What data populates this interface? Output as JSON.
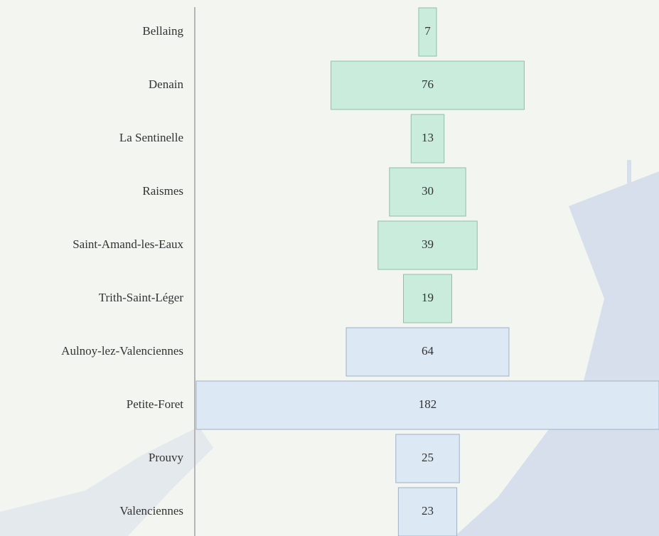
{
  "chart_data": {
    "type": "bar",
    "categories": [
      "Bellaing",
      "Denain",
      "La Sentinelle",
      "Raismes",
      "Saint-Amand-les-Eaux",
      "Trith-Saint-Léger",
      "Aulnoy-lez-Valenciennes",
      "Petite-Foret",
      "Prouvy",
      "Valenciennes"
    ],
    "values": [
      7,
      76,
      13,
      30,
      39,
      19,
      64,
      182,
      25,
      23
    ],
    "colors": [
      "#c9ecdc",
      "#c9ecdc",
      "#c9ecdc",
      "#c9ecdc",
      "#c9ecdc",
      "#c9ecdc",
      "#dde8f5",
      "#dde8f5",
      "#dde8f5",
      "#dde8f5"
    ]
  }
}
